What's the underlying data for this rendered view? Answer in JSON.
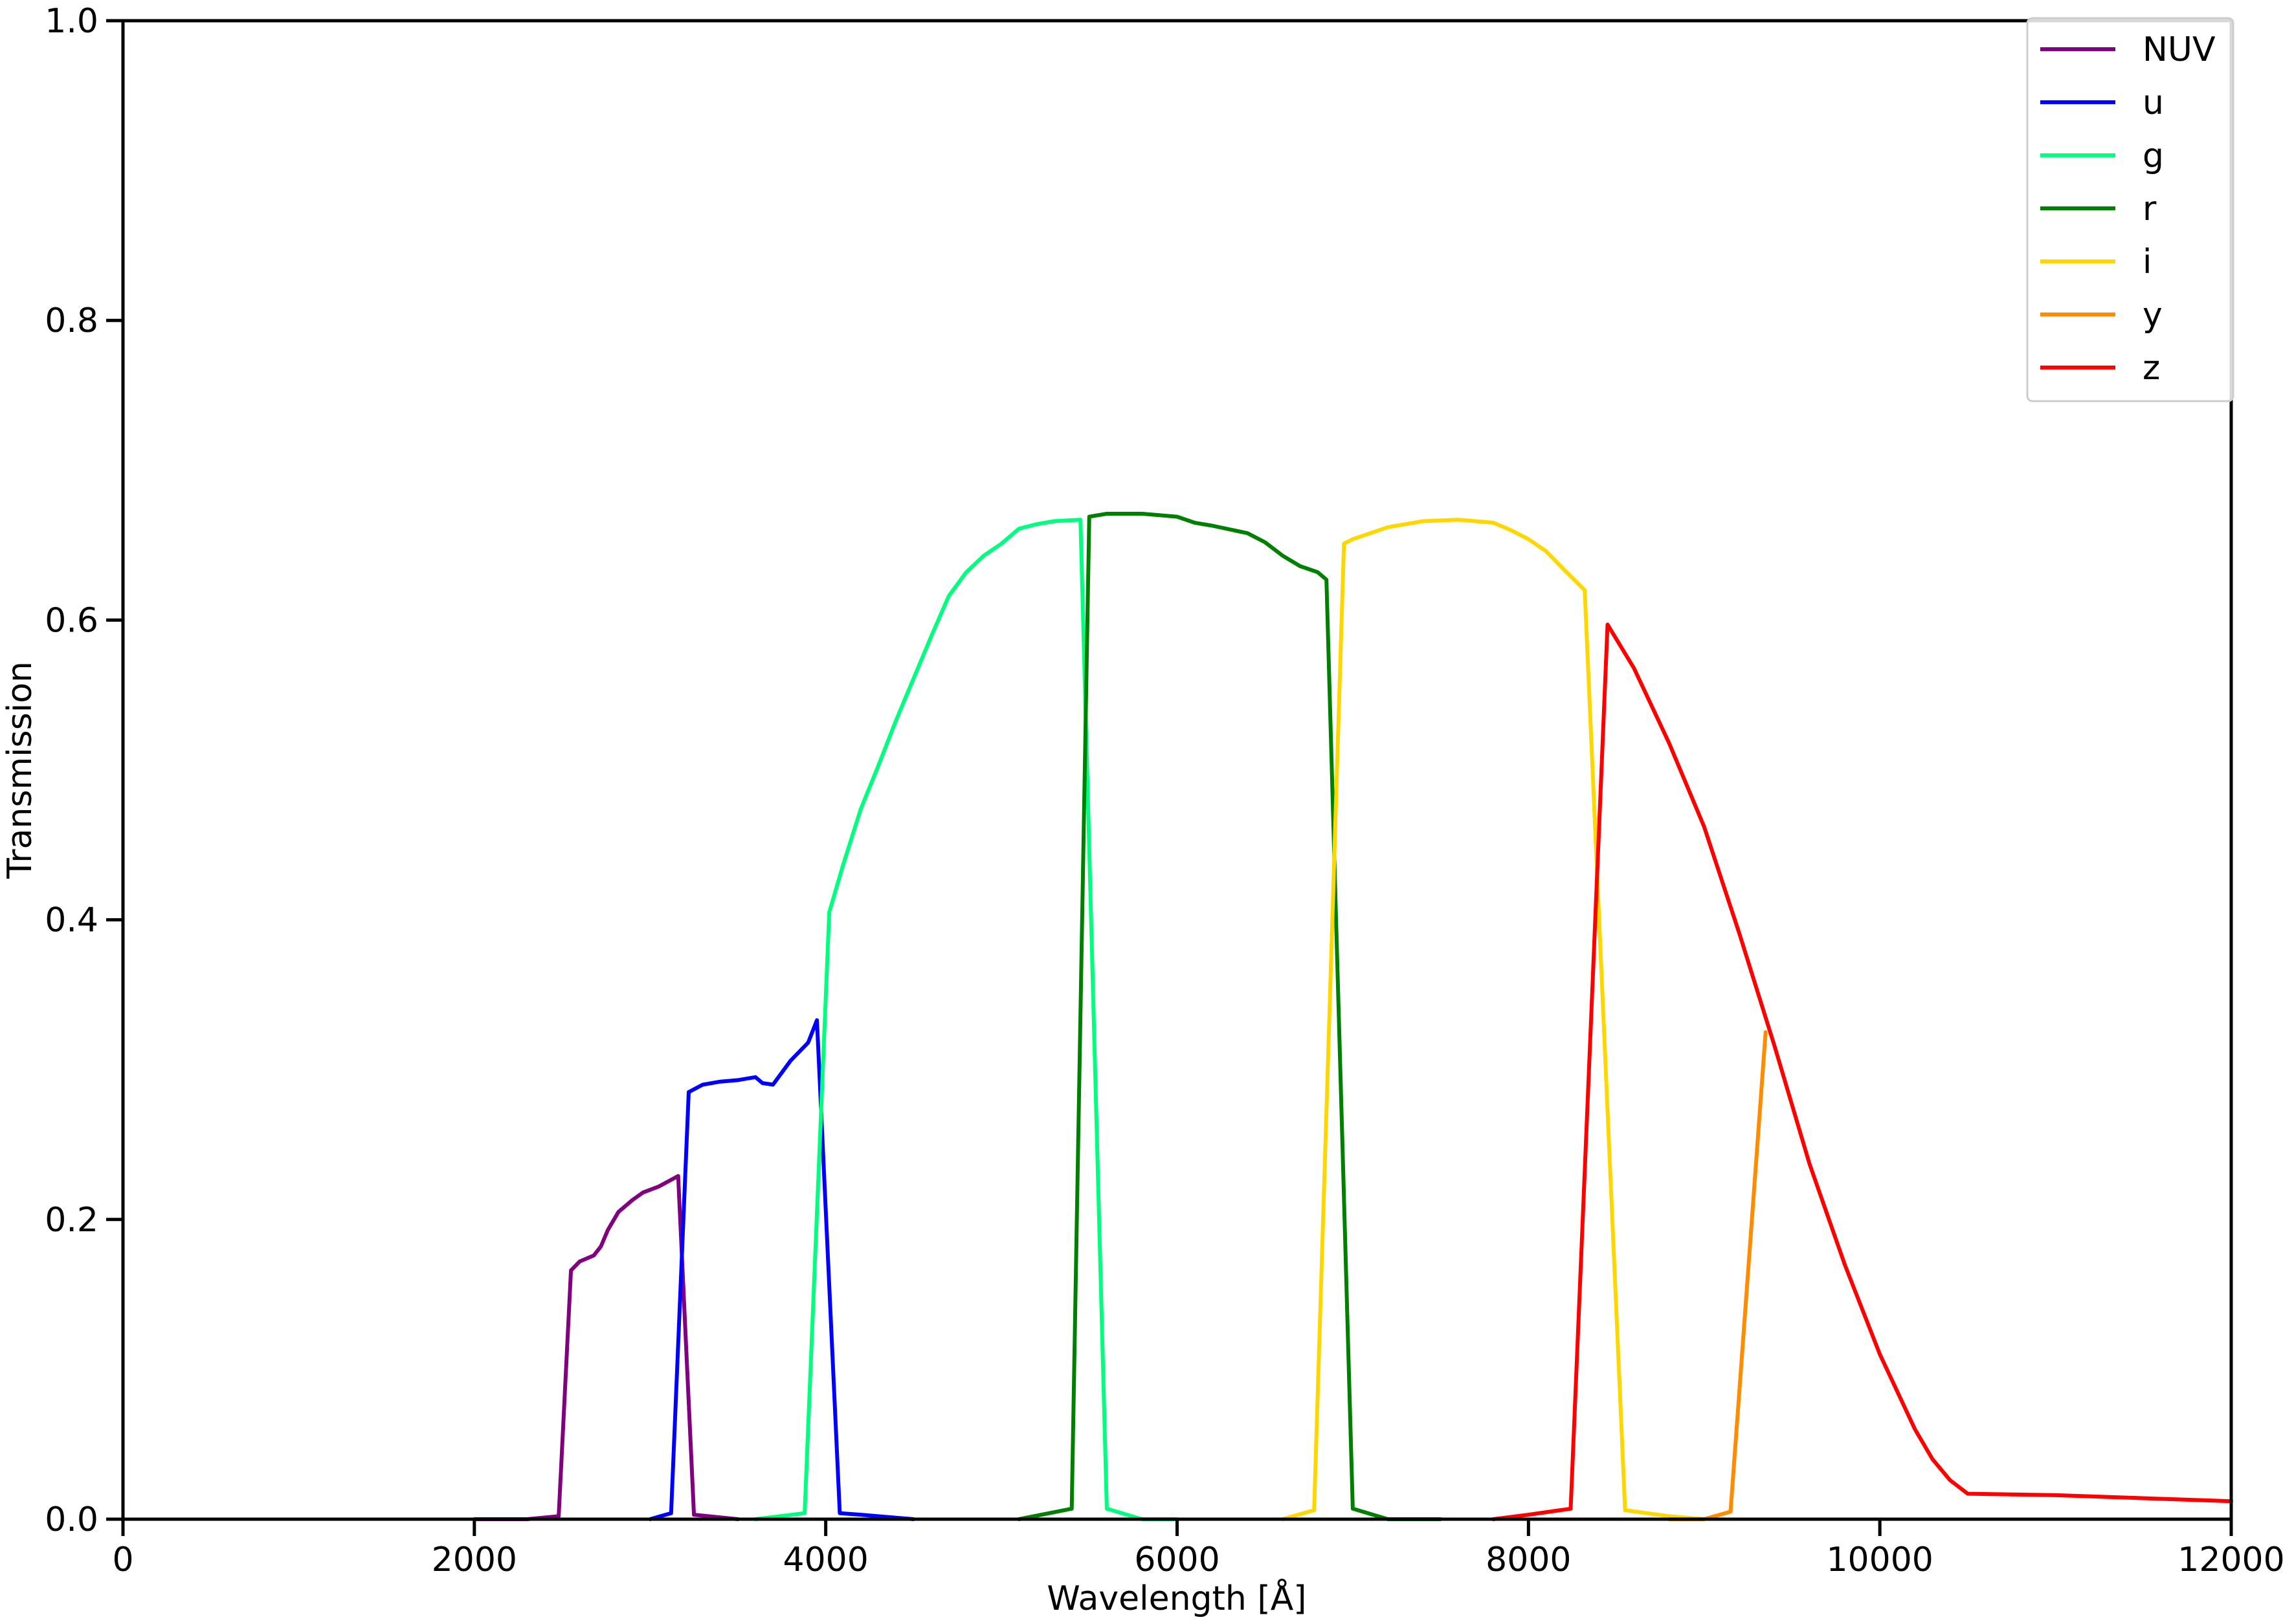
{
  "chart_data": {
    "type": "line",
    "xlabel": "Wavelength [Å]",
    "ylabel": "Transmission",
    "xlim": [
      0,
      12000
    ],
    "ylim": [
      0,
      1.0
    ],
    "xticks": [
      0,
      2000,
      4000,
      6000,
      8000,
      10000,
      12000
    ],
    "xtick_labels": [
      "0",
      "2000",
      "4000",
      "6000",
      "8000",
      "10000",
      "12000"
    ],
    "yticks": [
      0,
      0.2,
      0.4,
      0.6,
      0.8,
      1.0
    ],
    "ytick_labels": [
      "0.0",
      "0.2",
      "0.4",
      "0.6",
      "0.8",
      "1.0"
    ],
    "grid": false,
    "legend_position": "top-right",
    "series": [
      {
        "name": "NUV",
        "color": "#800080",
        "x": [
          2000,
          2300,
          2480,
          2550,
          2600,
          2680,
          2720,
          2760,
          2820,
          2900,
          2960,
          3050,
          3160,
          3250,
          3500
        ],
        "y": [
          0.0,
          0.0,
          0.002,
          0.166,
          0.172,
          0.176,
          0.182,
          0.193,
          0.205,
          0.213,
          0.218,
          0.222,
          0.229,
          0.003,
          0.0
        ]
      },
      {
        "name": "u",
        "color": "#0000ff",
        "x": [
          3000,
          3120,
          3220,
          3300,
          3400,
          3500,
          3600,
          3640,
          3700,
          3800,
          3900,
          3950,
          4080,
          4200,
          4500
        ],
        "y": [
          0.0,
          0.004,
          0.285,
          0.29,
          0.292,
          0.293,
          0.295,
          0.291,
          0.29,
          0.306,
          0.318,
          0.333,
          0.004,
          0.003,
          0.0
        ]
      },
      {
        "name": "g",
        "color": "#00ff7f",
        "x": [
          3600,
          3880,
          4020,
          4100,
          4200,
          4300,
          4400,
          4500,
          4600,
          4700,
          4800,
          4900,
          5000,
          5100,
          5200,
          5300,
          5450,
          5600,
          5800,
          6000
        ],
        "y": [
          0.0,
          0.004,
          0.405,
          0.437,
          0.474,
          0.503,
          0.533,
          0.561,
          0.589,
          0.616,
          0.632,
          0.643,
          0.651,
          0.661,
          0.664,
          0.666,
          0.667,
          0.007,
          0.0,
          0.0
        ]
      },
      {
        "name": "r",
        "color": "#008000",
        "x": [
          5100,
          5400,
          5500,
          5600,
          5800,
          6000,
          6100,
          6200,
          6400,
          6500,
          6600,
          6700,
          6800,
          6850,
          7000,
          7200,
          7500
        ],
        "y": [
          0.0,
          0.007,
          0.669,
          0.671,
          0.671,
          0.669,
          0.665,
          0.663,
          0.658,
          0.652,
          0.643,
          0.636,
          0.632,
          0.627,
          0.007,
          0.0,
          0.0
        ]
      },
      {
        "name": "i",
        "color": "#ffd700",
        "x": [
          6600,
          6780,
          6950,
          7000,
          7200,
          7400,
          7600,
          7800,
          7900,
          8000,
          8100,
          8200,
          8320,
          8550,
          8800,
          9000
        ],
        "y": [
          0.0,
          0.006,
          0.651,
          0.654,
          0.662,
          0.666,
          0.667,
          0.665,
          0.66,
          0.654,
          0.646,
          0.634,
          0.62,
          0.006,
          0.002,
          0.0
        ]
      },
      {
        "name": "y",
        "color": "#ff8c00",
        "x": [
          8800,
          9000,
          9150,
          9350
        ],
        "y": [
          0.0,
          0.0,
          0.005,
          0.325
        ]
      },
      {
        "name": "z",
        "color": "#ff0000",
        "x": [
          7800,
          8000,
          8240,
          8450,
          8600,
          8800,
          9000,
          9200,
          9400,
          9600,
          9800,
          10000,
          10200,
          10300,
          10400,
          10500,
          11000,
          12000
        ],
        "y": [
          0.0,
          0.003,
          0.007,
          0.597,
          0.568,
          0.518,
          0.462,
          0.391,
          0.316,
          0.237,
          0.17,
          0.11,
          0.06,
          0.04,
          0.026,
          0.017,
          0.016,
          0.012
        ]
      }
    ]
  }
}
